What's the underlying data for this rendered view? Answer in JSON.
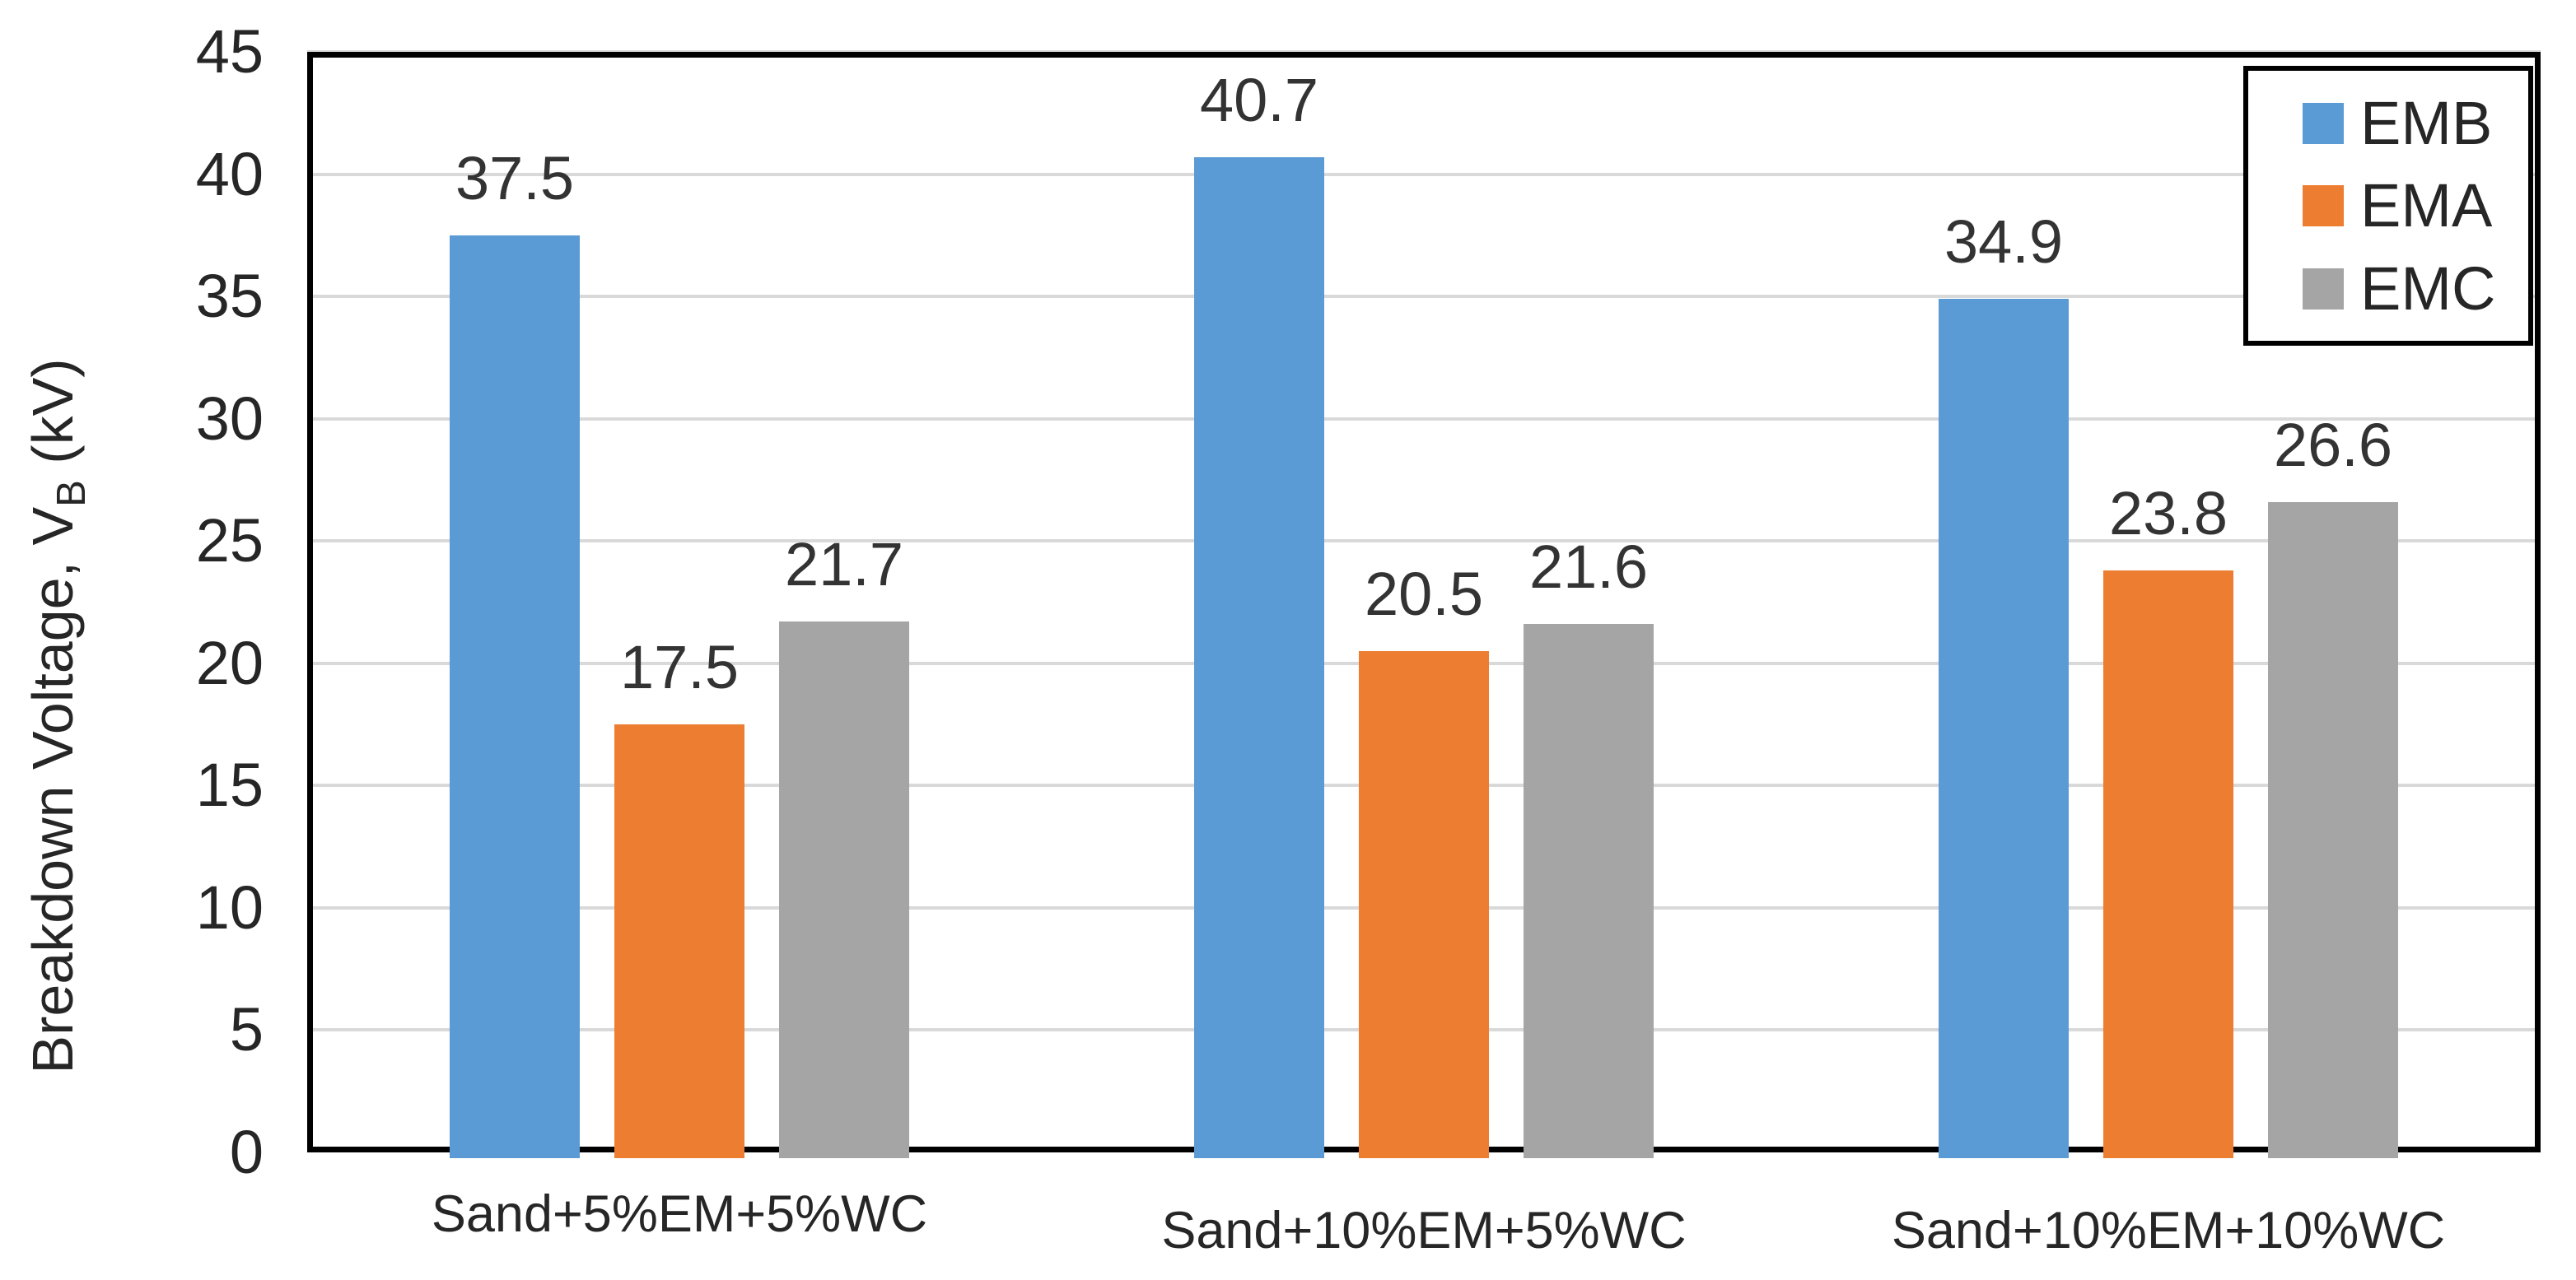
{
  "chart_data": {
    "type": "bar",
    "title": "",
    "categories": [
      "Sand+5%EM+5%WC",
      "Sand+10%EM+5%WC",
      "Sand+10%EM+10%WC"
    ],
    "series": [
      {
        "name": "EMB",
        "color": "#5B9BD5",
        "values": [
          37.5,
          40.7,
          34.9
        ]
      },
      {
        "name": "EMA",
        "color": "#ED7D31",
        "values": [
          17.5,
          20.5,
          23.8
        ]
      },
      {
        "name": "EMC",
        "color": "#A5A5A5",
        "values": [
          21.7,
          21.6,
          26.6
        ]
      }
    ],
    "data_labels": [
      [
        "37.5",
        "40.7",
        "34.9"
      ],
      [
        "17.5",
        "20.5",
        "23.8"
      ],
      [
        "21.7",
        "21.6",
        "26.6"
      ]
    ],
    "ylabel_parts": {
      "prefix": "Breakdown Voltage, V",
      "sub": "B",
      "suffix": " (kV)"
    },
    "y_ticks": [
      "0",
      "5",
      "10",
      "15",
      "20",
      "25",
      "30",
      "35",
      "40",
      "45"
    ],
    "ylim": [
      0,
      45
    ],
    "grid": true,
    "legend_position": "top-right",
    "colors": {
      "gridline": "#D9D9D9",
      "axis": "#000000",
      "text": "#262626",
      "background": "#FFFFFF"
    }
  }
}
